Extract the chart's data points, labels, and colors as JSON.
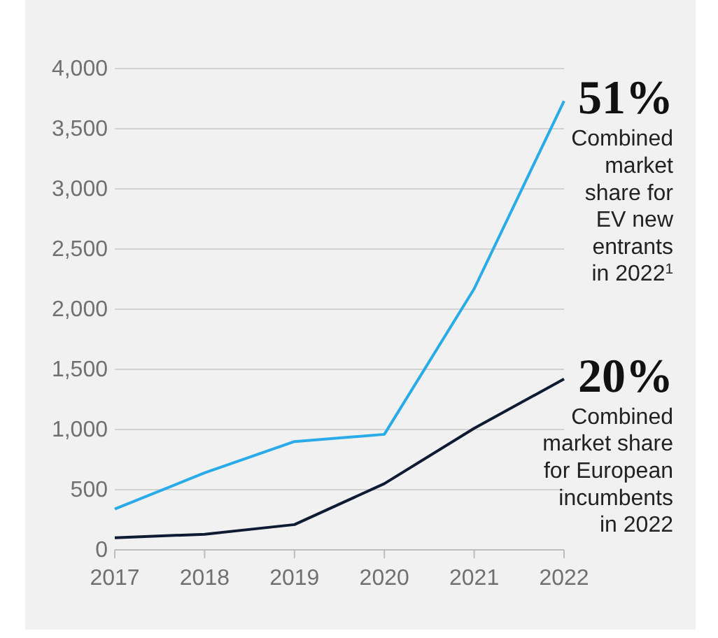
{
  "chart_data": {
    "type": "line",
    "x": [
      2017,
      2018,
      2019,
      2020,
      2021,
      2022
    ],
    "series": [
      {
        "color": "#29abe9",
        "values": [
          340,
          640,
          900,
          960,
          2170,
          3730
        ]
      },
      {
        "color": "#0e1b33",
        "values": [
          100,
          130,
          210,
          550,
          1010,
          1420
        ]
      }
    ],
    "xlim": [
      2017,
      2022
    ],
    "xticks": [
      2017,
      2018,
      2019,
      2020,
      2021,
      2022
    ],
    "ylim": [
      0,
      4000
    ],
    "yticks": [
      {
        "value": 0,
        "label": "0"
      },
      {
        "value": 500,
        "label": "500"
      },
      {
        "value": 1000,
        "label": "1,000"
      },
      {
        "value": 1500,
        "label": "1,500"
      },
      {
        "value": 2000,
        "label": "2,000"
      },
      {
        "value": 2500,
        "label": "2,500"
      },
      {
        "value": 3000,
        "label": "3,000"
      },
      {
        "value": 3500,
        "label": "3,500"
      },
      {
        "value": 4000,
        "label": "4,000"
      }
    ],
    "grid": "y",
    "marker": "none",
    "line_style": "solid",
    "annotations": [
      "51%",
      "Combined\nmarket\nshare for\nEV new\nentrants\nin 2022$^{1}$",
      "20%",
      "Combined\nmarket share\nfor European\nincumbents\nin 2022"
    ]
  }
}
